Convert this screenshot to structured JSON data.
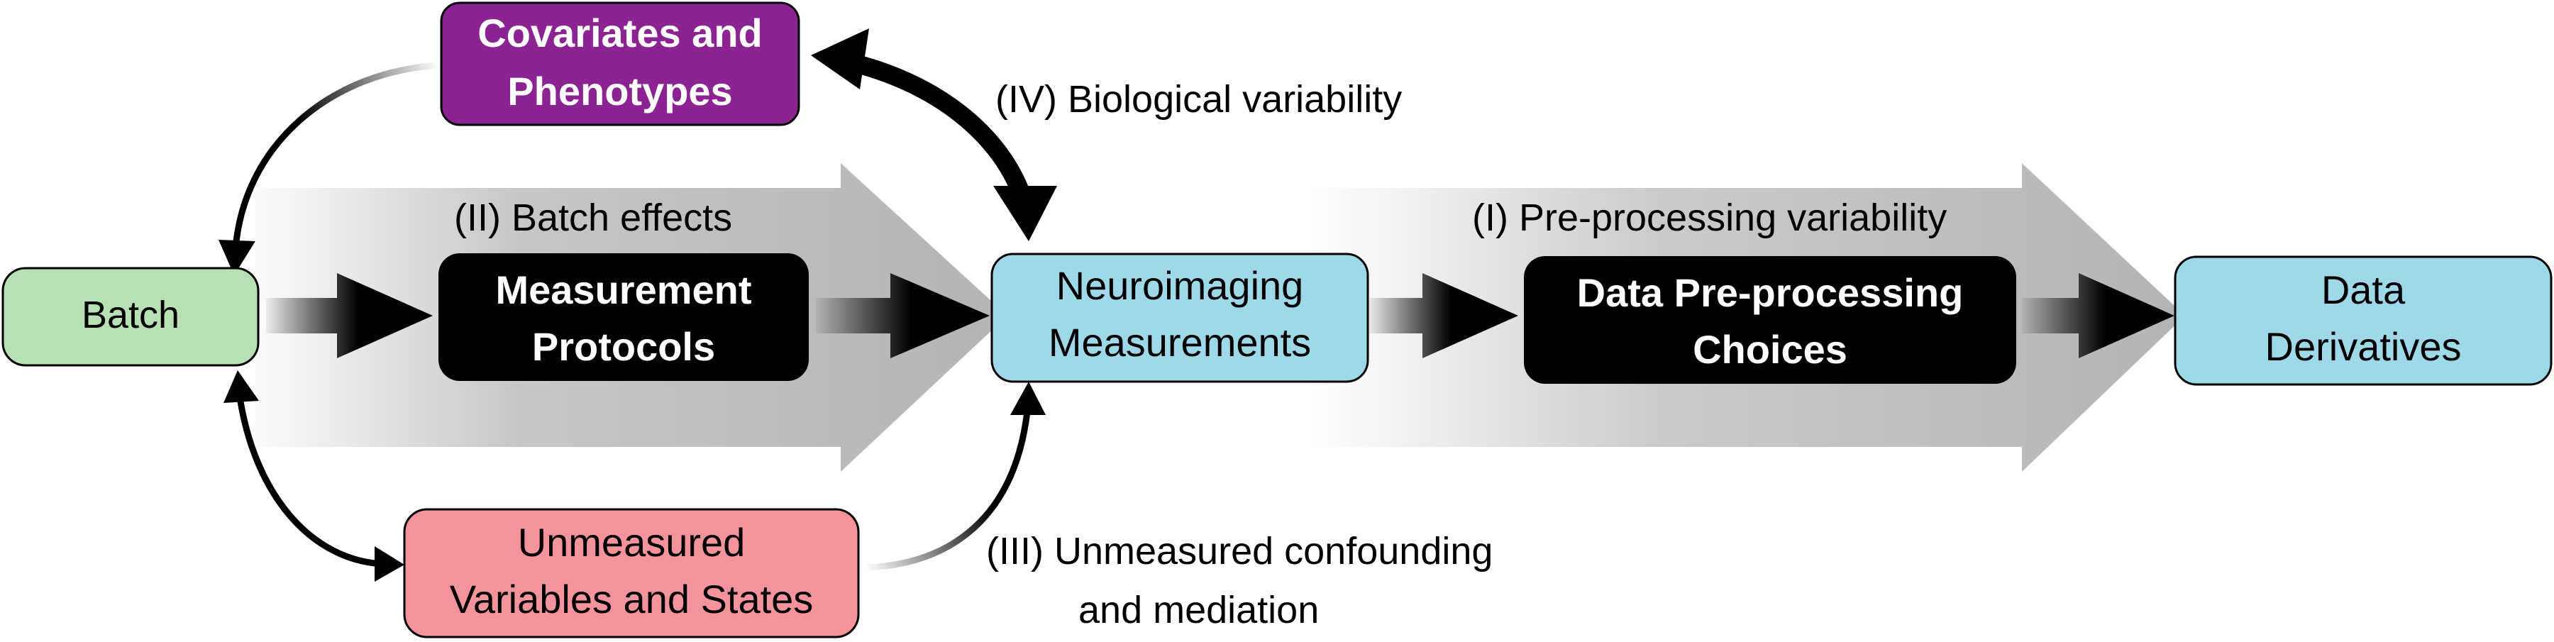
{
  "nodes": {
    "batch": "Batch",
    "covariates_line1": "Covariates and",
    "covariates_line2": "Phenotypes",
    "measurement_line1": "Measurement",
    "measurement_line2": "Protocols",
    "neuro_line1": "Neuroimaging",
    "neuro_line2": "Measurements",
    "preproc_line1": "Data Pre-processing",
    "preproc_line2": "Choices",
    "derivatives_line1": "Data",
    "derivatives_line2": "Derivatives",
    "unmeasured_line1": "Unmeasured",
    "unmeasured_line2": "Variables and States"
  },
  "labels": {
    "batch_effects": "(II) Batch effects",
    "preproc_variability": "(I) Pre-processing variability",
    "biological_variability": "(IV) Biological variability",
    "unmeasured_line1": "(III) Unmeasured confounding",
    "unmeasured_line2": "and mediation"
  },
  "colors": {
    "batch_fill": "#b7e0b5",
    "covariates_fill": "#8c2393",
    "neuro_fill": "#9ed9ea",
    "derivatives_fill": "#9ed9ea",
    "black_box_fill": "#000000",
    "unmeasured_fill": "#f3949c",
    "band_gray": "#b4b4b4",
    "arrow_black": "#000000"
  }
}
